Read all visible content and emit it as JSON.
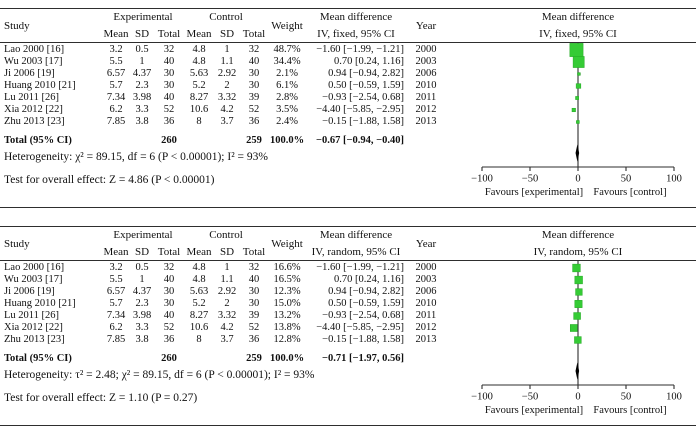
{
  "columns": {
    "study": "Study",
    "experimental": "Experimental",
    "control": "Control",
    "mean": "Mean",
    "sd": "SD",
    "total": "Total",
    "weight": "Weight",
    "mean_difference": "Mean difference",
    "year": "Year"
  },
  "axis": {
    "xlim": [
      -100,
      100
    ],
    "tick_values": [
      -100,
      -50,
      0,
      50,
      100
    ],
    "ticks": [
      "−100",
      "−50",
      "0",
      "50",
      "100"
    ],
    "favours_left": "Favours [experimental]",
    "favours_right": "Favours [control]"
  },
  "colors": {
    "marker_green": "#35cb35",
    "marker_edge": "#23a923",
    "ci_line": "#6a6a6a",
    "diamond_black": "#000000",
    "zero_line": "#3f3f3f",
    "axis_line": "#2e2e2e"
  },
  "chart_data": [
    {
      "type": "forest",
      "effect_label": "Mean difference",
      "method_label": "IV, fixed, 95% CI",
      "xlim": [
        -100,
        100
      ],
      "studies": [
        {
          "study": "Lao 2000 [16]",
          "exp_mean": "3.2",
          "exp_sd": "0.5",
          "exp_total": "32",
          "ctrl_mean": "4.8",
          "ctrl_sd": "1",
          "ctrl_total": "32",
          "weight": "48.7%",
          "weight_pct": 48.7,
          "md": -1.6,
          "ci_low": -1.99,
          "ci_high": -1.21,
          "md_text": "−1.60 [−1.99, −1.21]",
          "year": "2000"
        },
        {
          "study": "Wu 2003 [17]",
          "exp_mean": "5.5",
          "exp_sd": "1",
          "exp_total": "40",
          "ctrl_mean": "4.8",
          "ctrl_sd": "1.1",
          "ctrl_total": "40",
          "weight": "34.4%",
          "weight_pct": 34.4,
          "md": 0.7,
          "ci_low": 0.24,
          "ci_high": 1.16,
          "md_text": "0.70 [0.24, 1.16]",
          "year": "2003"
        },
        {
          "study": "Ji 2006 [19]",
          "exp_mean": "6.57",
          "exp_sd": "4.37",
          "exp_total": "30",
          "ctrl_mean": "5.63",
          "ctrl_sd": "2.92",
          "ctrl_total": "30",
          "weight": "2.1%",
          "weight_pct": 2.1,
          "md": 0.94,
          "ci_low": -0.94,
          "ci_high": 2.82,
          "md_text": "0.94 [−0.94, 2.82]",
          "year": "2006"
        },
        {
          "study": "Huang 2010 [21]",
          "exp_mean": "5.7",
          "exp_sd": "2.3",
          "exp_total": "30",
          "ctrl_mean": "5.2",
          "ctrl_sd": "2",
          "ctrl_total": "30",
          "weight": "6.1%",
          "weight_pct": 6.1,
          "md": 0.5,
          "ci_low": -0.59,
          "ci_high": 1.59,
          "md_text": "0.50 [−0.59, 1.59]",
          "year": "2010"
        },
        {
          "study": "Lu 2011 [26]",
          "exp_mean": "7.34",
          "exp_sd": "3.98",
          "exp_total": "40",
          "ctrl_mean": "8.27",
          "ctrl_sd": "3.32",
          "ctrl_total": "39",
          "weight": "2.8%",
          "weight_pct": 2.8,
          "md": -0.93,
          "ci_low": -2.54,
          "ci_high": 0.68,
          "md_text": "−0.93 [−2.54, 0.68]",
          "year": "2011"
        },
        {
          "study": "Xia 2012 [22]",
          "exp_mean": "6.2",
          "exp_sd": "3.3",
          "exp_total": "52",
          "ctrl_mean": "10.6",
          "ctrl_sd": "4.2",
          "ctrl_total": "52",
          "weight": "3.5%",
          "weight_pct": 3.5,
          "md": -4.4,
          "ci_low": -5.85,
          "ci_high": -2.95,
          "md_text": "−4.40 [−5.85, −2.95]",
          "year": "2012"
        },
        {
          "study": "Zhu 2013 [23]",
          "exp_mean": "7.85",
          "exp_sd": "3.8",
          "exp_total": "36",
          "ctrl_mean": "8",
          "ctrl_sd": "3.7",
          "ctrl_total": "36",
          "weight": "2.4%",
          "weight_pct": 2.4,
          "md": -0.15,
          "ci_low": -1.88,
          "ci_high": 1.58,
          "md_text": "−0.15 [−1.88, 1.58]",
          "year": "2013"
        }
      ],
      "total": {
        "label": "Total (95% CI)",
        "exp_total": "260",
        "ctrl_total": "259",
        "weight": "100.0%",
        "md": -0.67,
        "ci_low": -0.94,
        "ci_high": -0.4,
        "md_text": "−0.67 [−0.94, −0.40]"
      },
      "heterogeneity": "Heterogeneity: χ² = 89.15, df = 6 (P < 0.00001); I² = 93%",
      "overall_effect": "Test for overall effect: Z = 4.86 (P < 0.00001)"
    },
    {
      "type": "forest",
      "effect_label": "Mean difference",
      "method_label": "IV, random, 95% CI",
      "xlim": [
        -100,
        100
      ],
      "studies": [
        {
          "study": "Lao 2000 [16]",
          "exp_mean": "3.2",
          "exp_sd": "0.5",
          "exp_total": "32",
          "ctrl_mean": "4.8",
          "ctrl_sd": "1",
          "ctrl_total": "32",
          "weight": "16.6%",
          "weight_pct": 16.6,
          "md": -1.6,
          "ci_low": -1.99,
          "ci_high": -1.21,
          "md_text": "−1.60 [−1.99, −1.21]",
          "year": "2000"
        },
        {
          "study": "Wu 2003 [17]",
          "exp_mean": "5.5",
          "exp_sd": "1",
          "exp_total": "40",
          "ctrl_mean": "4.8",
          "ctrl_sd": "1.1",
          "ctrl_total": "40",
          "weight": "16.5%",
          "weight_pct": 16.5,
          "md": 0.7,
          "ci_low": 0.24,
          "ci_high": 1.16,
          "md_text": "0.70 [0.24, 1.16]",
          "year": "2003"
        },
        {
          "study": "Ji 2006 [19]",
          "exp_mean": "6.57",
          "exp_sd": "4.37",
          "exp_total": "30",
          "ctrl_mean": "5.63",
          "ctrl_sd": "2.92",
          "ctrl_total": "30",
          "weight": "12.3%",
          "weight_pct": 12.3,
          "md": 0.94,
          "ci_low": -0.94,
          "ci_high": 2.82,
          "md_text": "0.94 [−0.94, 2.82]",
          "year": "2006"
        },
        {
          "study": "Huang 2010 [21]",
          "exp_mean": "5.7",
          "exp_sd": "2.3",
          "exp_total": "30",
          "ctrl_mean": "5.2",
          "ctrl_sd": "2",
          "ctrl_total": "30",
          "weight": "15.0%",
          "weight_pct": 15.0,
          "md": 0.5,
          "ci_low": -0.59,
          "ci_high": 1.59,
          "md_text": "0.50 [−0.59, 1.59]",
          "year": "2010"
        },
        {
          "study": "Lu 2011 [26]",
          "exp_mean": "7.34",
          "exp_sd": "3.98",
          "exp_total": "40",
          "ctrl_mean": "8.27",
          "ctrl_sd": "3.32",
          "ctrl_total": "39",
          "weight": "13.2%",
          "weight_pct": 13.2,
          "md": -0.93,
          "ci_low": -2.54,
          "ci_high": 0.68,
          "md_text": "−0.93 [−2.54, 0.68]",
          "year": "2011"
        },
        {
          "study": "Xia 2012 [22]",
          "exp_mean": "6.2",
          "exp_sd": "3.3",
          "exp_total": "52",
          "ctrl_mean": "10.6",
          "ctrl_sd": "4.2",
          "ctrl_total": "52",
          "weight": "13.8%",
          "weight_pct": 13.8,
          "md": -4.4,
          "ci_low": -5.85,
          "ci_high": -2.95,
          "md_text": "−4.40 [−5.85, −2.95]",
          "year": "2012"
        },
        {
          "study": "Zhu 2013 [23]",
          "exp_mean": "7.85",
          "exp_sd": "3.8",
          "exp_total": "36",
          "ctrl_mean": "8",
          "ctrl_sd": "3.7",
          "ctrl_total": "36",
          "weight": "12.8%",
          "weight_pct": 12.8,
          "md": -0.15,
          "ci_low": -1.88,
          "ci_high": 1.58,
          "md_text": "−0.15 [−1.88, 1.58]",
          "year": "2013"
        }
      ],
      "total": {
        "label": "Total (95% CI)",
        "exp_total": "260",
        "ctrl_total": "259",
        "weight": "100.0%",
        "md": -0.71,
        "ci_low": -1.97,
        "ci_high": 0.56,
        "md_text": "−0.71 [−1.97, 0.56]"
      },
      "heterogeneity": "Heterogeneity: τ² = 2.48; χ² = 89.15, df = 6 (P < 0.00001); I² = 93%",
      "overall_effect": "Test for overall effect: Z = 1.10 (P = 0.27)"
    }
  ]
}
